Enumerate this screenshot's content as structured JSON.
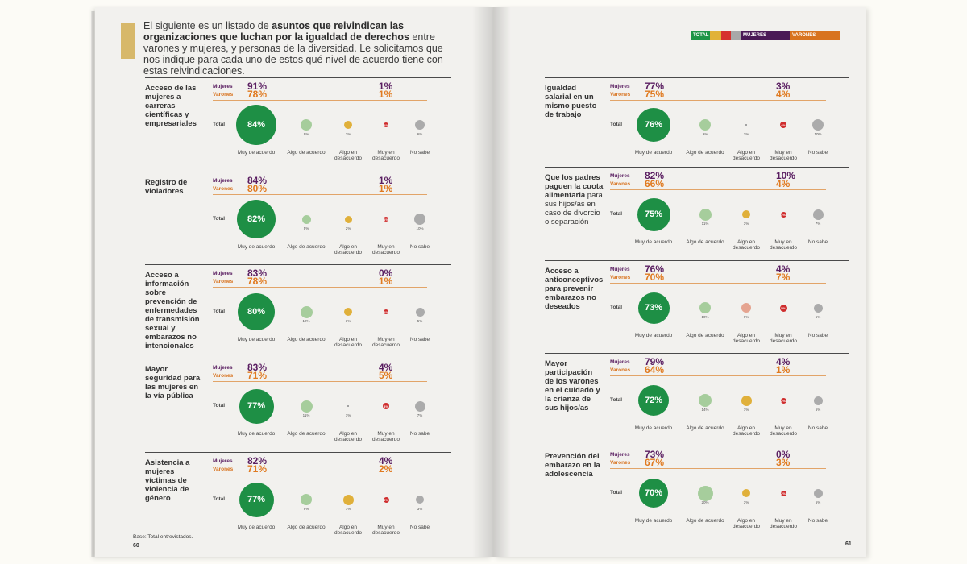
{
  "intro": {
    "pre": "El siguiente es un listado de ",
    "bold": "asuntos que reivindican las organizaciones que luchan por la igualdad de derechos",
    "post": " entre varones y mujeres, y personas de la diversidad. Le solicitamos que nos indique para cada uno de estos qué nivel de acuerdo tiene con estas reivindicaciones."
  },
  "legend": {
    "total": "TOTAL",
    "mujeres": "MUJERES",
    "varones": "VARONES",
    "colors": {
      "muy_acuerdo": "#1e8f45",
      "algo_acuerdo": "#a6cd9c",
      "algo_desacuerdo": "#e0b03a",
      "muy_desacuerdo": "#cf2d2d",
      "no_sabe": "#ababab",
      "mujeres": "#5a1e61",
      "varones": "#d8731f"
    }
  },
  "labels": {
    "mujeres": "Mujeres",
    "varones": "Varones",
    "total": "Total"
  },
  "categories": [
    {
      "key": "muy_acuerdo",
      "label": "Muy de acuerdo"
    },
    {
      "key": "algo_acuerdo",
      "label": "Algo de acuerdo"
    },
    {
      "key": "algo_desacuerdo",
      "label": "Algo en desacuerdo"
    },
    {
      "key": "muy_desacuerdo",
      "label": "Muy en desacuerdo"
    },
    {
      "key": "no_sabe",
      "label": "No sabe"
    }
  ],
  "left_items": [
    {
      "title": "Acceso de las mujeres a carreras científicas y empresariales",
      "mujeres_acuerdo": "91%",
      "varones_acuerdo": "78%",
      "mujeres_desacuerdo": "1%",
      "varones_desacuerdo": "1%",
      "total": "84%",
      "algo_acuerdo": "9%",
      "algo_desacuerdo": "3%",
      "muy_desacuerdo": "1%",
      "no_sabe": "6%"
    },
    {
      "title": "Registro de violadores",
      "mujeres_acuerdo": "84%",
      "varones_acuerdo": "80%",
      "mujeres_desacuerdo": "1%",
      "varones_desacuerdo": "1%",
      "total": "82%",
      "algo_acuerdo": "5%",
      "algo_desacuerdo": "2%",
      "muy_desacuerdo": "1%",
      "no_sabe": "10%"
    },
    {
      "title": "Acceso a información sobre prevención de enfermedades de transmisión sexual y embarazos no intencionales",
      "mujeres_acuerdo": "83%",
      "varones_acuerdo": "78%",
      "mujeres_desacuerdo": "0%",
      "varones_desacuerdo": "1%",
      "total": "80%",
      "algo_acuerdo": "12%",
      "algo_desacuerdo": "3%",
      "muy_desacuerdo": "1%",
      "no_sabe": "5%"
    },
    {
      "title": "Mayor seguridad para las mujeres en la vía pública",
      "mujeres_acuerdo": "83%",
      "varones_acuerdo": "71%",
      "mujeres_desacuerdo": "4%",
      "varones_desacuerdo": "5%",
      "total": "77%",
      "algo_acuerdo": "11%",
      "algo_desacuerdo": "1%",
      "muy_desacuerdo": "4%",
      "no_sabe": "7%"
    },
    {
      "title": "Asistencia a mujeres víctimas de violencia de género",
      "mujeres_acuerdo": "82%",
      "varones_acuerdo": "71%",
      "mujeres_desacuerdo": "4%",
      "varones_desacuerdo": "2%",
      "total": "77%",
      "algo_acuerdo": "9%",
      "algo_desacuerdo": "7%",
      "muy_desacuerdo": "3%",
      "no_sabe": "3%"
    }
  ],
  "right_items": [
    {
      "title": "Igualdad salarial en un mismo puesto de trabajo",
      "mujeres_acuerdo": "77%",
      "varones_acuerdo": "75%",
      "mujeres_desacuerdo": "3%",
      "varones_desacuerdo": "4%",
      "total": "76%",
      "algo_acuerdo": "9%",
      "algo_desacuerdo": "1%",
      "muy_desacuerdo": "4%",
      "no_sabe": "10%"
    },
    {
      "title_bold": "Que los padres paguen la cuota alimentaria",
      "title_rest": " para sus hijos/as en caso de divorcio o separación",
      "mujeres_acuerdo": "82%",
      "varones_acuerdo": "66%",
      "mujeres_desacuerdo": "10%",
      "varones_desacuerdo": "4%",
      "total": "75%",
      "algo_acuerdo": "11%",
      "algo_desacuerdo": "3%",
      "muy_desacuerdo": "3%",
      "no_sabe": "7%"
    },
    {
      "title": "Acceso a anticonceptivos para prevenir embarazos no deseados",
      "mujeres_acuerdo": "76%",
      "varones_acuerdo": "70%",
      "mujeres_desacuerdo": "4%",
      "varones_desacuerdo": "7%",
      "total": "73%",
      "algo_acuerdo": "10%",
      "algo_desacuerdo": "6%",
      "muy_desacuerdo": "5%",
      "no_sabe": "5%"
    },
    {
      "title": "Mayor participación de los varones en el cuidado y la crianza de sus hijos/as",
      "mujeres_acuerdo": "79%",
      "varones_acuerdo": "64%",
      "mujeres_desacuerdo": "4%",
      "varones_desacuerdo": "1%",
      "total": "72%",
      "algo_acuerdo": "14%",
      "algo_desacuerdo": "7%",
      "muy_desacuerdo": "2%",
      "no_sabe": "5%"
    },
    {
      "title": "Prevención del embarazo en la adolescencia",
      "mujeres_acuerdo": "73%",
      "varones_acuerdo": "67%",
      "mujeres_desacuerdo": "0%",
      "varones_desacuerdo": "3%",
      "total": "70%",
      "algo_acuerdo": "20%",
      "algo_desacuerdo": "3%",
      "muy_desacuerdo": "2%",
      "no_sabe": "5%"
    }
  ],
  "footer": {
    "base": "Base: Total entrevistados.",
    "page_left": "60",
    "page_right": "61"
  }
}
